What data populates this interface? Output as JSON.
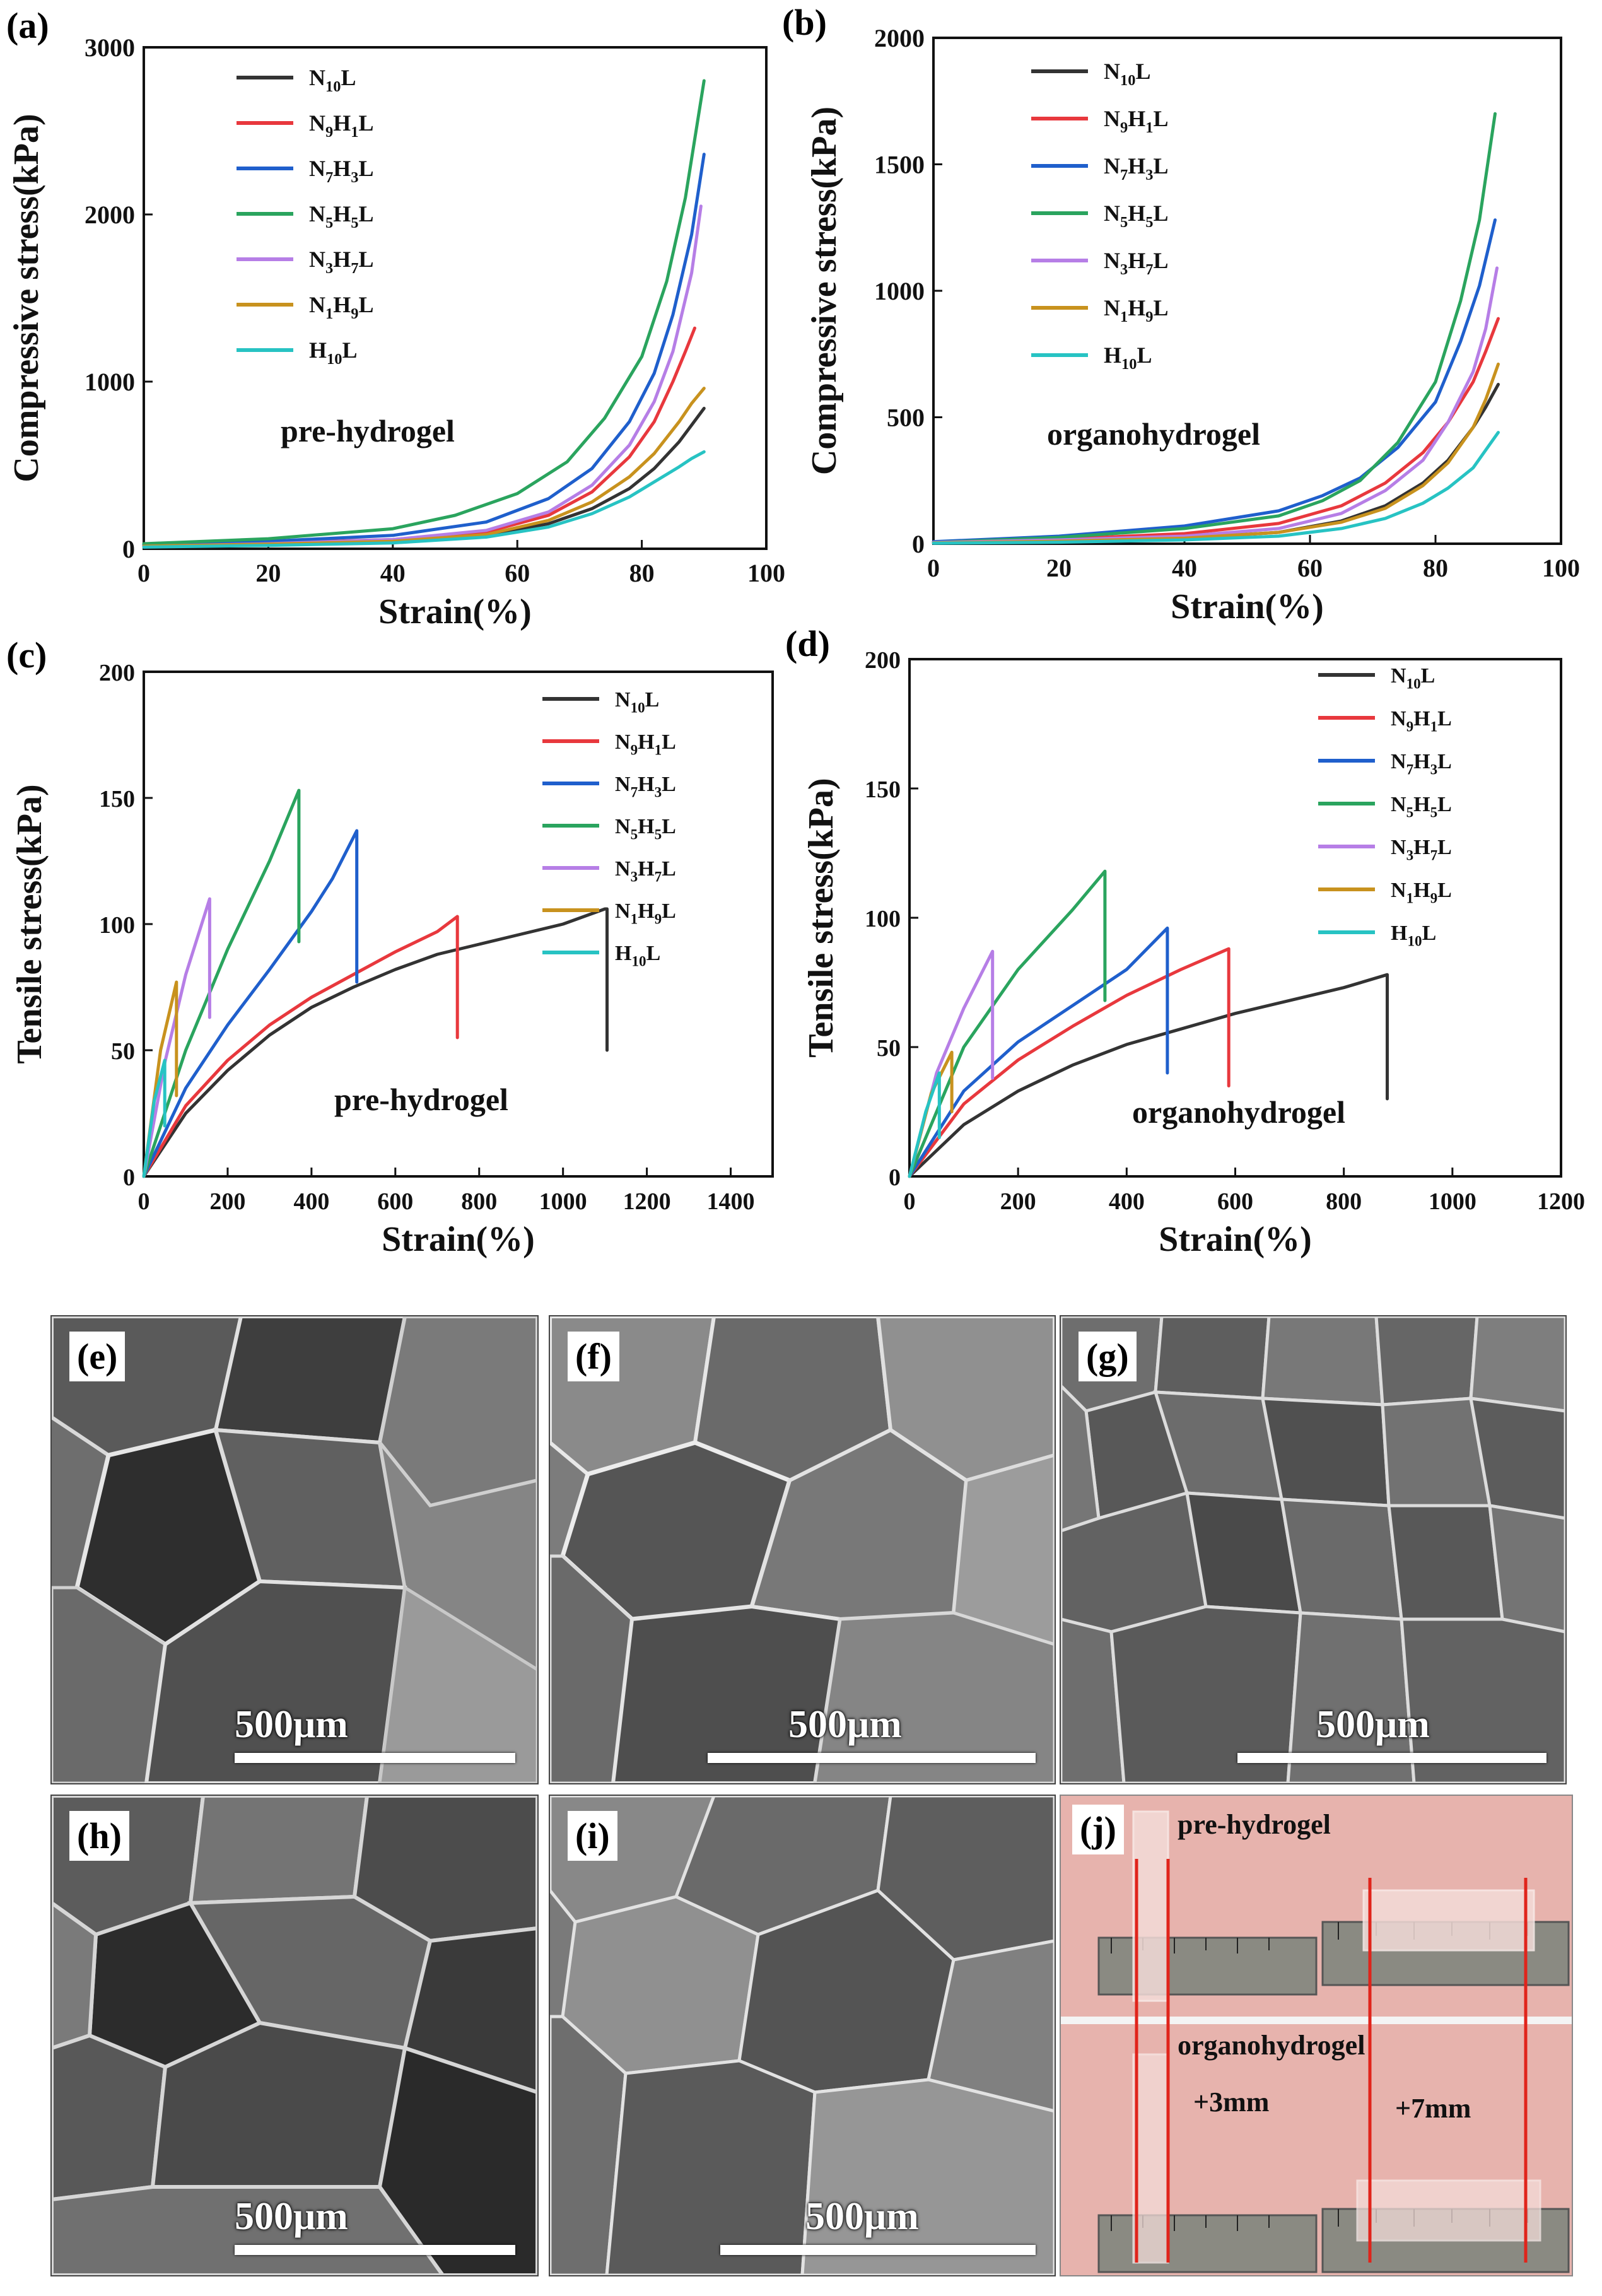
{
  "colors": {
    "N10L": "#333333",
    "N9H1L": "#e8383d",
    "N7H3L": "#1f5fcc",
    "N5H5L": "#2aa45e",
    "N3H7L": "#b67ee6",
    "N1H9L": "#c8921e",
    "H10L": "#27c3c3"
  },
  "legend_entries": [
    {
      "key": "N10L",
      "parts": [
        [
          "N",
          ""
        ],
        [
          "10",
          "sub"
        ],
        [
          "L",
          ""
        ]
      ]
    },
    {
      "key": "N9H1L",
      "parts": [
        [
          "N",
          ""
        ],
        [
          "9",
          "sub"
        ],
        [
          "H",
          ""
        ],
        [
          "1",
          "sub"
        ],
        [
          "L",
          ""
        ]
      ]
    },
    {
      "key": "N7H3L",
      "parts": [
        [
          "N",
          ""
        ],
        [
          "7",
          "sub"
        ],
        [
          "H",
          ""
        ],
        [
          "3",
          "sub"
        ],
        [
          "L",
          ""
        ]
      ]
    },
    {
      "key": "N5H5L",
      "parts": [
        [
          "N",
          ""
        ],
        [
          "5",
          "sub"
        ],
        [
          "H",
          ""
        ],
        [
          "5",
          "sub"
        ],
        [
          "L",
          ""
        ]
      ]
    },
    {
      "key": "N3H7L",
      "parts": [
        [
          "N",
          ""
        ],
        [
          "3",
          "sub"
        ],
        [
          "H",
          ""
        ],
        [
          "7",
          "sub"
        ],
        [
          "L",
          ""
        ]
      ]
    },
    {
      "key": "N1H9L",
      "parts": [
        [
          "N",
          ""
        ],
        [
          "1",
          "sub"
        ],
        [
          "H",
          ""
        ],
        [
          "9",
          "sub"
        ],
        [
          "L",
          ""
        ]
      ]
    },
    {
      "key": "H10L",
      "parts": [
        [
          "H",
          ""
        ],
        [
          "10",
          "sub"
        ],
        [
          "L",
          ""
        ]
      ]
    }
  ],
  "chart_data": [
    {
      "panel": "(a)",
      "type": "line",
      "annotation": "pre-hydrogel",
      "xlabel": "Strain(%)",
      "ylabel": "Compressive stress(kPa)",
      "xlim": [
        0,
        100
      ],
      "ylim": [
        0,
        3000
      ],
      "xticks": [
        0,
        20,
        40,
        60,
        80,
        100
      ],
      "yticks": [
        0,
        1000,
        2000,
        3000
      ],
      "series": [
        {
          "key": "N10L",
          "x": [
            0,
            20,
            40,
            55,
            65,
            72,
            78,
            82,
            86,
            88,
            90
          ],
          "y": [
            20,
            30,
            45,
            80,
            150,
            240,
            360,
            480,
            640,
            740,
            840
          ]
        },
        {
          "key": "N9H1L",
          "x": [
            0,
            20,
            40,
            55,
            65,
            72,
            78,
            82,
            85,
            87,
            88.5
          ],
          "y": [
            20,
            35,
            55,
            100,
            200,
            340,
            550,
            760,
            1000,
            1180,
            1320
          ]
        },
        {
          "key": "N7H3L",
          "x": [
            0,
            20,
            40,
            55,
            65,
            72,
            78,
            82,
            85,
            88,
            90
          ],
          "y": [
            25,
            45,
            80,
            160,
            300,
            480,
            760,
            1050,
            1400,
            1880,
            2360
          ]
        },
        {
          "key": "N5H5L",
          "x": [
            0,
            20,
            40,
            50,
            60,
            68,
            74,
            80,
            84,
            87,
            90
          ],
          "y": [
            30,
            60,
            120,
            200,
            330,
            520,
            780,
            1150,
            1600,
            2100,
            2800
          ]
        },
        {
          "key": "N3H7L",
          "x": [
            0,
            20,
            40,
            55,
            65,
            72,
            78,
            82,
            85,
            88,
            89.5
          ],
          "y": [
            15,
            30,
            55,
            110,
            220,
            380,
            620,
            880,
            1180,
            1650,
            2050
          ]
        },
        {
          "key": "N1H9L",
          "x": [
            0,
            20,
            40,
            55,
            65,
            72,
            78,
            82,
            86,
            88,
            90
          ],
          "y": [
            15,
            28,
            45,
            85,
            170,
            280,
            430,
            570,
            760,
            870,
            960
          ]
        },
        {
          "key": "H10L",
          "x": [
            0,
            20,
            40,
            55,
            65,
            72,
            78,
            82,
            86,
            88,
            90
          ],
          "y": [
            10,
            20,
            35,
            70,
            130,
            210,
            310,
            400,
            490,
            540,
            580
          ]
        }
      ]
    },
    {
      "panel": "(b)",
      "type": "line",
      "annotation": "organohydrogel",
      "xlabel": "Strain(%)",
      "ylabel": "Compressive stress(kPa)",
      "xlim": [
        0,
        100
      ],
      "ylim": [
        0,
        2000
      ],
      "xticks": [
        0,
        20,
        40,
        60,
        80,
        100
      ],
      "yticks": [
        0,
        500,
        1000,
        1500,
        2000
      ],
      "series": [
        {
          "key": "N10L",
          "x": [
            0,
            20,
            40,
            55,
            65,
            72,
            78,
            82,
            86,
            88,
            90
          ],
          "y": [
            5,
            12,
            22,
            45,
            90,
            150,
            240,
            330,
            460,
            540,
            630
          ]
        },
        {
          "key": "N9H1L",
          "x": [
            0,
            20,
            40,
            55,
            65,
            72,
            78,
            82,
            86,
            88,
            90
          ],
          "y": [
            5,
            18,
            40,
            80,
            150,
            240,
            360,
            480,
            640,
            760,
            890
          ]
        },
        {
          "key": "N7H3L",
          "x": [
            0,
            20,
            40,
            55,
            62,
            68,
            74,
            80,
            84,
            87,
            89.5
          ],
          "y": [
            8,
            30,
            70,
            130,
            190,
            260,
            380,
            560,
            800,
            1020,
            1280
          ]
        },
        {
          "key": "N5H5L",
          "x": [
            0,
            20,
            40,
            55,
            62,
            68,
            74,
            80,
            84,
            87,
            89.5
          ],
          "y": [
            5,
            25,
            60,
            110,
            170,
            250,
            400,
            640,
            960,
            1280,
            1700
          ]
        },
        {
          "key": "N3H7L",
          "x": [
            0,
            20,
            40,
            55,
            65,
            72,
            78,
            82,
            86,
            88,
            89.8
          ],
          "y": [
            5,
            15,
            30,
            60,
            120,
            210,
            330,
            480,
            680,
            850,
            1090
          ]
        },
        {
          "key": "N1H9L",
          "x": [
            0,
            20,
            40,
            55,
            65,
            72,
            78,
            82,
            86,
            88,
            90
          ],
          "y": [
            3,
            10,
            22,
            45,
            85,
            140,
            230,
            320,
            460,
            570,
            710
          ]
        },
        {
          "key": "H10L",
          "x": [
            0,
            20,
            40,
            55,
            65,
            72,
            78,
            82,
            86,
            88,
            90
          ],
          "y": [
            2,
            6,
            15,
            30,
            60,
            100,
            160,
            220,
            300,
            370,
            440
          ]
        }
      ]
    },
    {
      "panel": "(c)",
      "type": "line",
      "annotation": "pre-hydrogel",
      "xlabel": "Strain(%)",
      "ylabel": "Tensile stress(kPa)",
      "xlim": [
        0,
        1500
      ],
      "ylim": [
        0,
        200
      ],
      "xticks": [
        0,
        200,
        400,
        600,
        800,
        1000,
        1200,
        1400
      ],
      "yticks": [
        0,
        50,
        100,
        150,
        200
      ],
      "series": [
        {
          "key": "N10L",
          "x": [
            0,
            100,
            200,
            300,
            400,
            500,
            600,
            700,
            800,
            900,
            1000,
            1100,
            1105,
            1105
          ],
          "y": [
            0,
            25,
            42,
            56,
            67,
            75,
            82,
            88,
            92,
            96,
            100,
            106,
            106,
            50
          ]
        },
        {
          "key": "N9H1L",
          "x": [
            0,
            100,
            200,
            300,
            400,
            500,
            600,
            700,
            748,
            748
          ],
          "y": [
            0,
            28,
            46,
            60,
            71,
            80,
            89,
            97,
            103,
            55
          ]
        },
        {
          "key": "N7H3L",
          "x": [
            0,
            100,
            200,
            300,
            400,
            450,
            508,
            508
          ],
          "y": [
            0,
            35,
            60,
            82,
            105,
            118,
            137,
            77
          ]
        },
        {
          "key": "N5H5L",
          "x": [
            0,
            100,
            200,
            300,
            370,
            370
          ],
          "y": [
            0,
            50,
            90,
            125,
            153,
            93
          ]
        },
        {
          "key": "N3H7L",
          "x": [
            0,
            50,
            100,
            157,
            157
          ],
          "y": [
            0,
            45,
            80,
            110,
            63
          ]
        },
        {
          "key": "N1H9L",
          "x": [
            0,
            40,
            78,
            78
          ],
          "y": [
            0,
            50,
            77,
            32
          ]
        },
        {
          "key": "H10L",
          "x": [
            0,
            25,
            50,
            50
          ],
          "y": [
            0,
            30,
            46,
            20
          ]
        }
      ]
    },
    {
      "panel": "(d)",
      "type": "line",
      "annotation": "organohydrogel",
      "xlabel": "Strain(%)",
      "ylabel": "Tensile stress(kPa)",
      "xlim": [
        0,
        1200
      ],
      "ylim": [
        0,
        200
      ],
      "xticks": [
        0,
        200,
        400,
        600,
        800,
        1000,
        1200
      ],
      "yticks": [
        0,
        50,
        100,
        150,
        200
      ],
      "series": [
        {
          "key": "N10L",
          "x": [
            0,
            100,
            200,
            300,
            400,
            500,
            600,
            700,
            800,
            880,
            880
          ],
          "y": [
            0,
            20,
            33,
            43,
            51,
            57,
            63,
            68,
            73,
            78,
            30
          ]
        },
        {
          "key": "N9H1L",
          "x": [
            0,
            100,
            200,
            300,
            400,
            500,
            588,
            588
          ],
          "y": [
            0,
            28,
            45,
            58,
            70,
            80,
            88,
            35
          ]
        },
        {
          "key": "N7H3L",
          "x": [
            0,
            100,
            200,
            300,
            400,
            475,
            475
          ],
          "y": [
            0,
            33,
            52,
            66,
            80,
            96,
            40
          ]
        },
        {
          "key": "N5H5L",
          "x": [
            0,
            100,
            200,
            300,
            360,
            360
          ],
          "y": [
            0,
            50,
            80,
            103,
            118,
            68
          ]
        },
        {
          "key": "N3H7L",
          "x": [
            0,
            50,
            100,
            153,
            153
          ],
          "y": [
            0,
            40,
            65,
            87,
            38
          ]
        },
        {
          "key": "N1H9L",
          "x": [
            0,
            40,
            78,
            78
          ],
          "y": [
            0,
            32,
            48,
            25
          ]
        },
        {
          "key": "H10L",
          "x": [
            0,
            30,
            55,
            55
          ],
          "y": [
            0,
            25,
            40,
            15
          ]
        }
      ]
    }
  ],
  "images": [
    {
      "letter": "(e)",
      "scale": "500μm"
    },
    {
      "letter": "(f)",
      "scale": "500μm"
    },
    {
      "letter": "(g)",
      "scale": "500μm"
    },
    {
      "letter": "(h)",
      "scale": "500μm"
    },
    {
      "letter": "(i)",
      "scale": "500μm"
    },
    {
      "letter": "(j)",
      "top_label": "pre-hydrogel",
      "bottom_label": "organohydrogel",
      "delta_left": "+3mm",
      "delta_right": "+7mm"
    }
  ]
}
